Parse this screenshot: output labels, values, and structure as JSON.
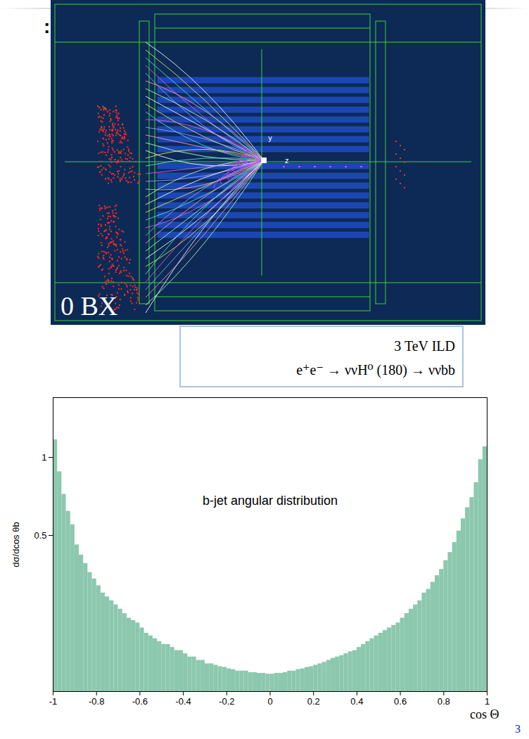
{
  "chart_data": {
    "type": "histogram",
    "xlabel": "cos Θ",
    "ylabel": "dσ/dcos θb",
    "info_box": [
      "3 TeV ILD",
      "e⁺e⁻ → ννH⁰ (180) → ννbb"
    ],
    "annotations": [
      "b-jet angular distribution"
    ],
    "bins": [
      -1,
      -0.98,
      -0.96,
      -0.94,
      -0.92,
      -0.9,
      -0.88,
      -0.86,
      -0.84,
      -0.82,
      -0.8,
      -0.78,
      -0.76,
      -0.74,
      -0.72,
      -0.7,
      -0.68,
      -0.66,
      -0.64,
      -0.62,
      -0.6,
      -0.58,
      -0.56,
      -0.54,
      -0.52,
      -0.5,
      -0.48,
      -0.46,
      -0.44,
      -0.42,
      -0.4,
      -0.38,
      -0.36,
      -0.34,
      -0.32,
      -0.3,
      -0.28,
      -0.26,
      -0.24,
      -0.22,
      -0.2,
      -0.18,
      -0.16,
      -0.14,
      -0.12,
      -0.1,
      -0.08,
      -0.06,
      -0.04,
      -0.02,
      0,
      0.02,
      0.04,
      0.06,
      0.08,
      0.1,
      0.12,
      0.14,
      0.16,
      0.18,
      0.2,
      0.22,
      0.24,
      0.26,
      0.28,
      0.3,
      0.32,
      0.34,
      0.36,
      0.38,
      0.4,
      0.42,
      0.44,
      0.46,
      0.48,
      0.5,
      0.52,
      0.54,
      0.56,
      0.58,
      0.6,
      0.62,
      0.64,
      0.66,
      0.68,
      0.7,
      0.72,
      0.74,
      0.76,
      0.78,
      0.8,
      0.82,
      0.84,
      0.86,
      0.88,
      0.9,
      0.92,
      0.94,
      0.96,
      0.98,
      1
    ],
    "values": [
      1.17,
      0.88,
      0.72,
      0.62,
      0.55,
      0.46,
      0.42,
      0.39,
      0.36,
      0.34,
      0.32,
      0.3,
      0.29,
      0.28,
      0.27,
      0.26,
      0.25,
      0.24,
      0.235,
      0.23,
      0.22,
      0.21,
      0.205,
      0.2,
      0.195,
      0.19,
      0.19,
      0.185,
      0.18,
      0.18,
      0.175,
      0.17,
      0.17,
      0.165,
      0.165,
      0.16,
      0.16,
      0.158,
      0.156,
      0.155,
      0.153,
      0.152,
      0.15,
      0.15,
      0.15,
      0.148,
      0.148,
      0.147,
      0.147,
      0.146,
      0.146,
      0.147,
      0.147,
      0.148,
      0.15,
      0.15,
      0.152,
      0.153,
      0.155,
      0.156,
      0.158,
      0.16,
      0.162,
      0.165,
      0.168,
      0.17,
      0.172,
      0.175,
      0.178,
      0.18,
      0.185,
      0.19,
      0.195,
      0.2,
      0.205,
      0.21,
      0.215,
      0.22,
      0.225,
      0.23,
      0.24,
      0.25,
      0.26,
      0.27,
      0.28,
      0.3,
      0.31,
      0.33,
      0.35,
      0.37,
      0.4,
      0.43,
      0.47,
      0.52,
      0.58,
      0.64,
      0.7,
      0.8,
      0.98,
      1.1
    ],
    "color": "#8cc8ae",
    "xlim": [
      -1,
      1
    ],
    "xticks": [
      -1,
      -0.8,
      -0.6,
      -0.4,
      -0.2,
      0,
      0.2,
      0.4,
      0.6,
      0.8,
      1
    ],
    "ylim": [
      0.125,
      1.7
    ],
    "yticks": [
      0.5,
      1
    ],
    "log": "y",
    "grid": false
  },
  "event_display": {
    "label": "0 BX",
    "axis_labels": [
      "y",
      "z"
    ]
  },
  "slide": {
    "fragment": ":",
    "page_number": "3"
  }
}
